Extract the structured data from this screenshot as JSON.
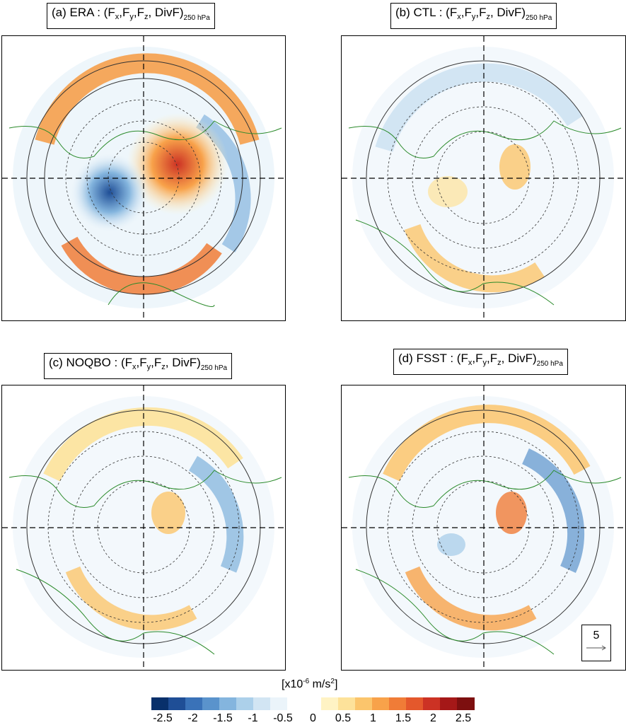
{
  "panels": [
    {
      "id": "a",
      "prefix": "(a) ERA : (F",
      "level": "250 hPa"
    },
    {
      "id": "b",
      "prefix": "(b) CTL : (F",
      "level": "250 hPa"
    },
    {
      "id": "c",
      "prefix": "(c) NOQBO : (F",
      "level": "250 hPa"
    },
    {
      "id": "d",
      "prefix": "(d) FSST : (F",
      "level": "250 hPa"
    }
  ],
  "title_parts": {
    "x": "x",
    "y": "y",
    "z": "z",
    "comma": ",",
    "divf": ", DivF)"
  },
  "colorbar": {
    "units_prefix": "[x10",
    "units_exp": "-6",
    "units_mid": " m/s",
    "units_exp2": "2",
    "units_suffix": "]",
    "labels": [
      "-2.5",
      "-2",
      "-1.5",
      "-1",
      "-0.5",
      "0",
      "0.5",
      "1",
      "1.5",
      "2",
      "2.5"
    ],
    "colors": [
      "#08306b",
      "#1f4e96",
      "#3a72b8",
      "#5a93cc",
      "#84b5de",
      "#acd0ea",
      "#d2e5f3",
      "#ebf4fa",
      "#ffffff",
      "#ffffff",
      "#fff3c4",
      "#fde29a",
      "#fbc56c",
      "#f8a24a",
      "#f07c37",
      "#e4582c",
      "#cc3224",
      "#a51818",
      "#7d0f0f"
    ]
  },
  "reference_vector": {
    "value": "5"
  },
  "icons": {
    "arrow": "reference-arrow-icon"
  }
}
